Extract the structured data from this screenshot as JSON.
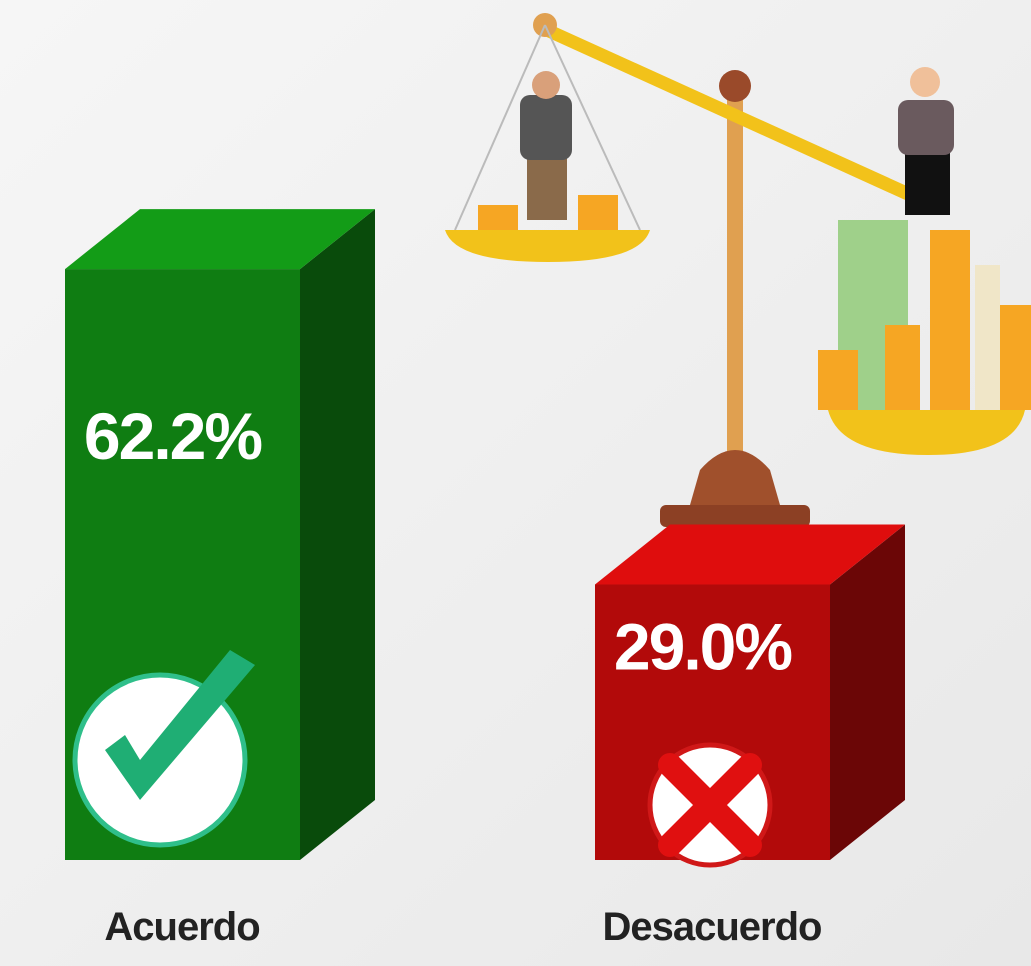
{
  "chart_data": {
    "type": "bar3d",
    "categories": [
      "Acuerdo",
      "Desacuerdo"
    ],
    "values": [
      62.2,
      29.0
    ],
    "value_labels": [
      "62.2%",
      "29.0%"
    ],
    "colors": [
      "#0f7d12",
      "#b20a0a"
    ]
  }
}
